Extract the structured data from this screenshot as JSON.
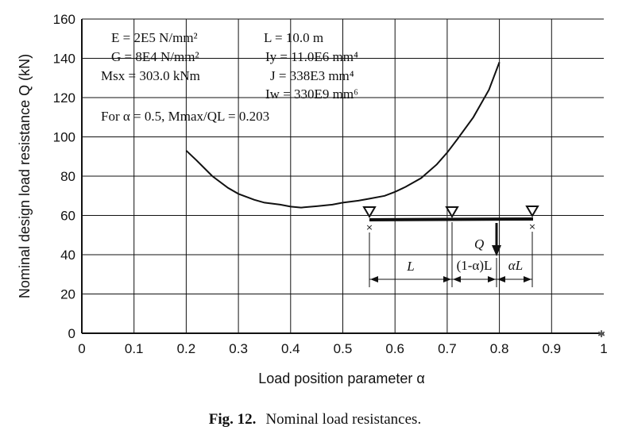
{
  "chart_data": {
    "type": "line",
    "xlabel": "Load position parameter α",
    "ylabel": "Nominal design load resistance Q (kN)",
    "xlim": [
      0,
      1
    ],
    "ylim": [
      0,
      160
    ],
    "xticks": [
      "0",
      "0.1",
      "0.2",
      "0.3",
      "0.4",
      "0.5",
      "0.6",
      "0.7",
      "0.8",
      "0.9",
      "1"
    ],
    "yticks": [
      "0",
      "20",
      "40",
      "60",
      "80",
      "100",
      "120",
      "140",
      "160"
    ],
    "grid": true,
    "series": [
      {
        "x": [
          0.2,
          0.22,
          0.25,
          0.28,
          0.3,
          0.33,
          0.35,
          0.38,
          0.4,
          0.42,
          0.45,
          0.48,
          0.5,
          0.53,
          0.55,
          0.58,
          0.6,
          0.62,
          0.65,
          0.68,
          0.7,
          0.72,
          0.75,
          0.78,
          0.8
        ],
        "y": [
          93,
          88,
          80,
          74,
          71,
          68,
          66.5,
          65.5,
          64.5,
          64,
          64.7,
          65.5,
          66.5,
          67.5,
          68.5,
          70,
          72,
          74.5,
          79,
          86,
          92,
          99,
          110,
          124,
          138
        ]
      }
    ],
    "annotations": {
      "params_left": [
        "E = 2E5 N/mm²",
        "G = 8E4 N/mm²",
        "Msx = 303.0 kNm"
      ],
      "params_right": [
        "L = 10.0 m",
        "Iy = 11.0E6 mm⁴",
        "J = 338E3 mm⁴",
        "Iw = 330E9 mm⁶"
      ],
      "note": "For α = 0.5, Mmax/QL = 0.203",
      "diagram": {
        "load": "Q",
        "span_left": "L",
        "span_mid": "(1-α)L",
        "span_right": "αL"
      }
    }
  },
  "caption": {
    "label": "Fig. 12.",
    "text": "Nominal load resistances."
  }
}
